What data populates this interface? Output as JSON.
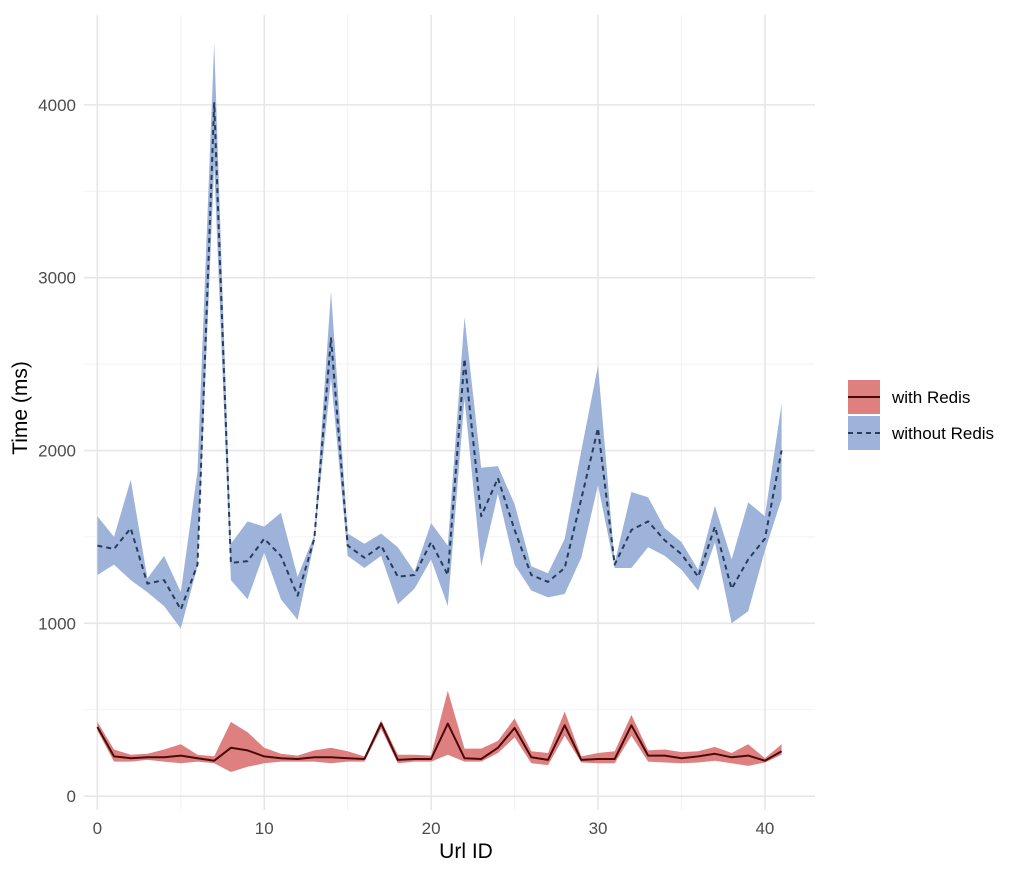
{
  "chart_data": {
    "type": "line",
    "title": "",
    "xlabel": "Url ID",
    "ylabel": "Time (ms)",
    "xlim": [
      -0.8,
      43.0
    ],
    "ylim": [
      -80,
      4520
    ],
    "x_ticks": [
      0,
      10,
      20,
      30,
      40
    ],
    "y_ticks": [
      0,
      1000,
      2000,
      3000,
      4000
    ],
    "grid": true,
    "legend": {
      "position": "right"
    },
    "x": [
      0,
      1,
      2,
      3,
      4,
      5,
      6,
      7,
      8,
      9,
      10,
      11,
      12,
      13,
      14,
      15,
      16,
      17,
      18,
      19,
      20,
      21,
      22,
      23,
      24,
      25,
      26,
      27,
      28,
      29,
      30,
      31,
      32,
      33,
      34,
      35,
      36,
      37,
      38,
      39,
      40,
      41
    ],
    "series": [
      {
        "name": "with Redis",
        "color": "#de8080",
        "line_color": "#4a0a0a",
        "line_style": "solid",
        "values": [
          400,
          230,
          220,
          225,
          225,
          235,
          220,
          205,
          280,
          265,
          230,
          220,
          215,
          225,
          225,
          220,
          215,
          420,
          210,
          215,
          215,
          420,
          220,
          215,
          280,
          395,
          225,
          210,
          410,
          210,
          215,
          215,
          410,
          235,
          235,
          220,
          230,
          245,
          225,
          235,
          205,
          260
        ],
        "lower": [
          380,
          200,
          200,
          210,
          200,
          190,
          200,
          190,
          140,
          170,
          190,
          200,
          200,
          200,
          190,
          200,
          200,
          390,
          190,
          200,
          200,
          240,
          200,
          200,
          250,
          340,
          190,
          180,
          350,
          195,
          190,
          190,
          350,
          200,
          195,
          190,
          195,
          205,
          190,
          175,
          195,
          240
        ],
        "upper": [
          430,
          270,
          240,
          245,
          270,
          300,
          240,
          230,
          430,
          370,
          280,
          245,
          235,
          265,
          280,
          260,
          230,
          440,
          240,
          240,
          235,
          610,
          275,
          275,
          320,
          450,
          260,
          250,
          490,
          230,
          250,
          260,
          470,
          265,
          270,
          255,
          260,
          285,
          250,
          300,
          220,
          300
        ]
      },
      {
        "name": "without Redis",
        "color": "#9db3d9",
        "line_color": "#283c5c",
        "line_style": "dashed",
        "values": [
          1450,
          1430,
          1550,
          1230,
          1250,
          1080,
          1340,
          4010,
          1350,
          1360,
          1490,
          1390,
          1160,
          1490,
          2650,
          1450,
          1380,
          1450,
          1270,
          1280,
          1470,
          1280,
          2530,
          1620,
          1840,
          1540,
          1280,
          1240,
          1320,
          1720,
          2130,
          1340,
          1540,
          1590,
          1480,
          1400,
          1270,
          1560,
          1200,
          1370,
          1490,
          2000
        ],
        "lower": [
          1280,
          1340,
          1250,
          1180,
          1100,
          970,
          1330,
          3650,
          1250,
          1140,
          1410,
          1140,
          1020,
          1470,
          2420,
          1390,
          1320,
          1390,
          1110,
          1200,
          1370,
          1100,
          2300,
          1330,
          1750,
          1340,
          1190,
          1150,
          1170,
          1380,
          1800,
          1320,
          1320,
          1440,
          1390,
          1310,
          1190,
          1470,
          1000,
          1070,
          1420,
          1720
        ],
        "upper": [
          1620,
          1500,
          1830,
          1260,
          1390,
          1180,
          1880,
          4360,
          1460,
          1590,
          1560,
          1640,
          1270,
          1510,
          2920,
          1520,
          1460,
          1520,
          1440,
          1300,
          1580,
          1450,
          2770,
          1900,
          1910,
          1690,
          1330,
          1290,
          1490,
          2000,
          2490,
          1350,
          1760,
          1730,
          1550,
          1470,
          1310,
          1680,
          1370,
          1700,
          1620,
          2270
        ]
      }
    ]
  }
}
